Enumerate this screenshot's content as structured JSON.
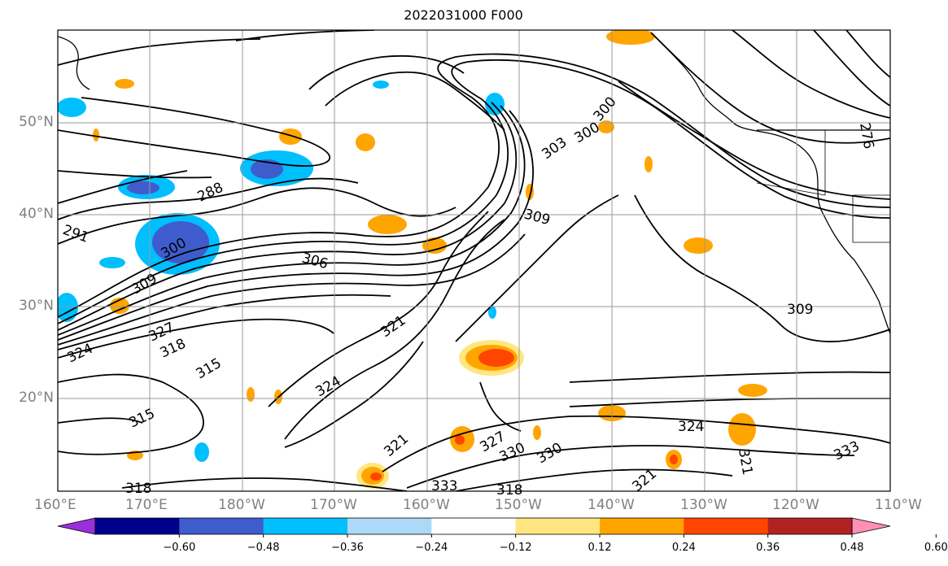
{
  "title": "2022031000 F000",
  "map": {
    "lat_labels": [
      "50°N",
      "40°N",
      "30°N",
      "20°N"
    ],
    "lon_labels": [
      "160°E",
      "170°E",
      "180°W",
      "170°W",
      "160°W",
      "150°W",
      "140°W",
      "130°W",
      "120°W",
      "110°W"
    ],
    "contour_labels": [
      "291",
      "288",
      "300",
      "306",
      "309",
      "327",
      "318",
      "324",
      "315",
      "321",
      "324",
      "315",
      "321",
      "327",
      "330",
      "330",
      "333",
      "318",
      "324",
      "321",
      "333",
      "321",
      "303",
      "300",
      "300",
      "309",
      "309",
      "318",
      "276"
    ]
  },
  "colorbar": {
    "tick_labels": [
      "−0.60",
      "−0.48",
      "−0.36",
      "−0.24",
      "−0.12",
      "0.12",
      "0.24",
      "0.36",
      "0.48",
      "0.60"
    ],
    "colors": [
      "#9b30d9",
      "#00008b",
      "#3f5ccc",
      "#00bfff",
      "#add8f7",
      "#ffffff",
      "#ffe680",
      "#ffa500",
      "#ff4500",
      "#b22222",
      "#ff8fb5"
    ]
  }
}
